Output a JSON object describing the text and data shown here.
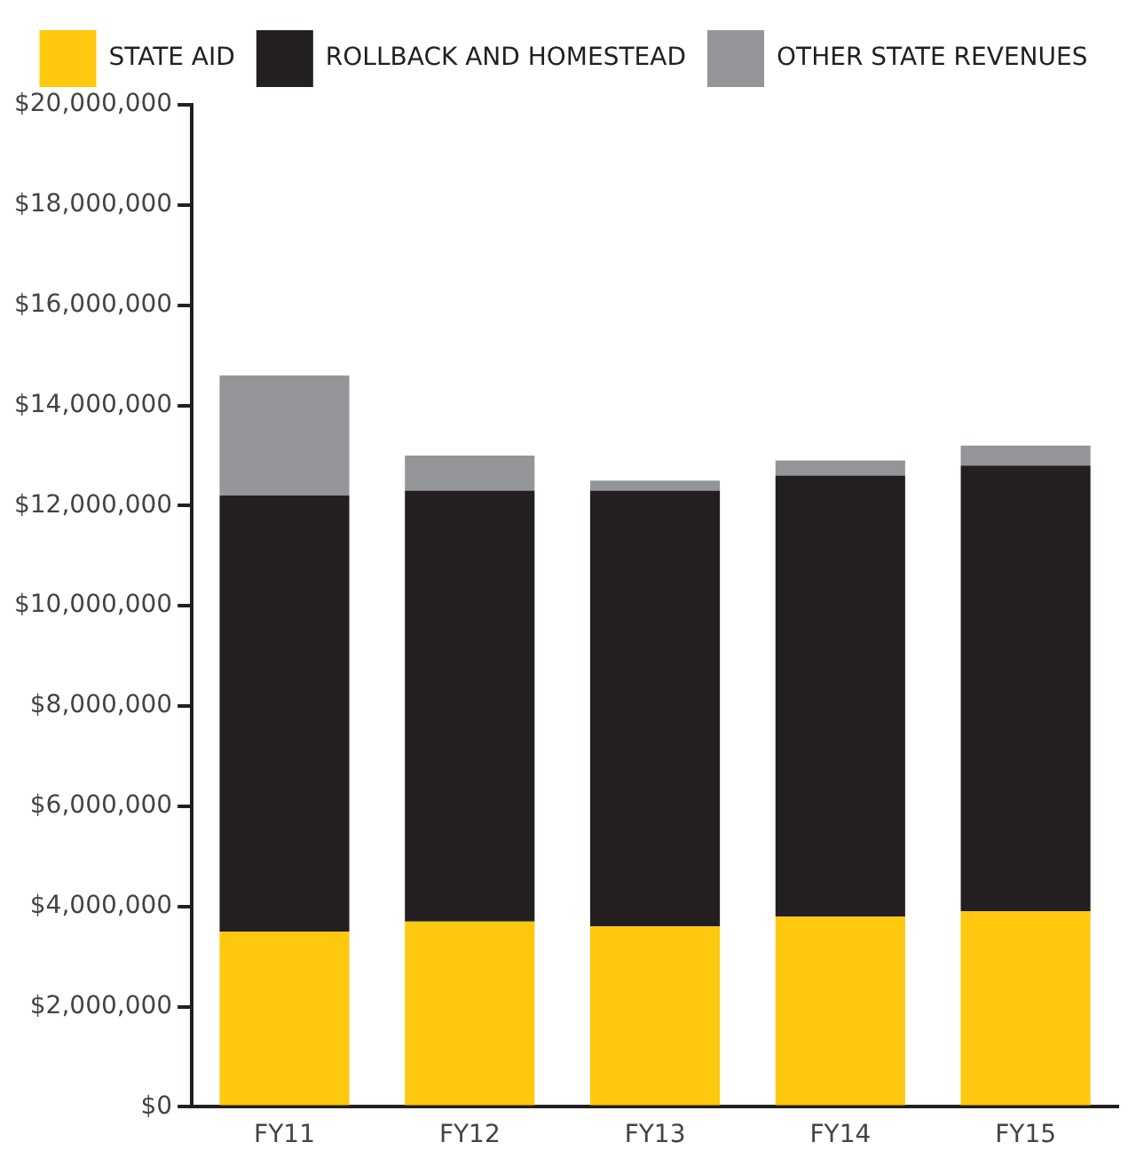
{
  "chart_data": {
    "type": "bar",
    "stacked": true,
    "categories": [
      "FY11",
      "FY12",
      "FY13",
      "FY14",
      "FY15"
    ],
    "series": [
      {
        "name": "STATE AID",
        "color": "#fdc80e",
        "values": [
          3500000,
          3700000,
          3600000,
          3800000,
          3900000
        ]
      },
      {
        "name": "ROLLBACK AND HOMESTEAD",
        "color": "#231f20",
        "values": [
          8700000,
          8600000,
          8700000,
          8800000,
          8900000
        ]
      },
      {
        "name": "OTHER STATE REVENUES",
        "color": "#939598",
        "values": [
          2400000,
          700000,
          200000,
          300000,
          400000
        ]
      }
    ],
    "ylim": [
      0,
      20000000
    ],
    "yticks": [
      {
        "value": 0,
        "label": "$0"
      },
      {
        "value": 2000000,
        "label": "$2,000,000"
      },
      {
        "value": 4000000,
        "label": "$4,000,000"
      },
      {
        "value": 6000000,
        "label": "$6,000,000"
      },
      {
        "value": 8000000,
        "label": "$8,000,000"
      },
      {
        "value": 10000000,
        "label": "$10,000,000"
      },
      {
        "value": 12000000,
        "label": "$12,000,000"
      },
      {
        "value": 14000000,
        "label": "$14,000,000"
      },
      {
        "value": 16000000,
        "label": "$16,000,000"
      },
      {
        "value": 18000000,
        "label": "$18,000,000"
      },
      {
        "value": 20000000,
        "label": "$20,000,000"
      }
    ],
    "legend": "top"
  }
}
